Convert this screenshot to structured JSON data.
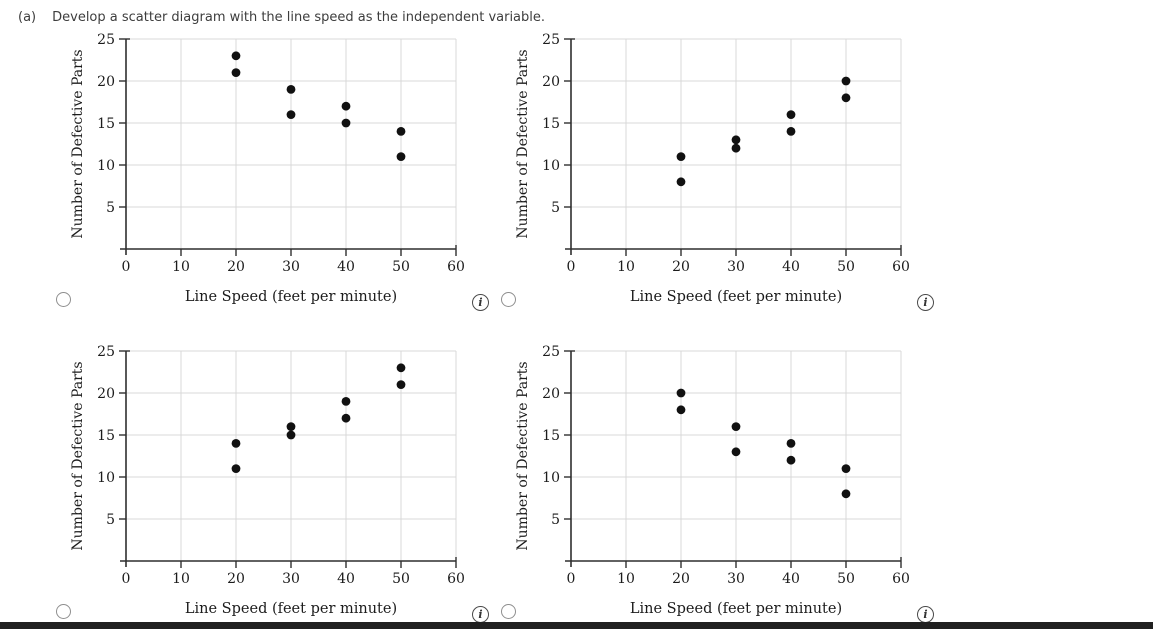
{
  "header": {
    "prefix": "(a)",
    "text": "Develop a scatter diagram with the line speed as the independent variable."
  },
  "colors": {
    "dot": "#111111",
    "grid": "#d8d8d8",
    "axis": "#2f2f2f",
    "text": "#1c1c1c",
    "bottom_bar": "#202020"
  },
  "icons": {
    "radio": "radio-circle",
    "info": "i"
  },
  "options": [
    {
      "id": 1,
      "selected": false
    },
    {
      "id": 2,
      "selected": false
    },
    {
      "id": 3,
      "selected": false
    },
    {
      "id": 4,
      "selected": false
    }
  ],
  "chart_data": [
    {
      "type": "scatter",
      "title": "",
      "xlabel": "Line Speed (feet per minute)",
      "ylabel": "Number of Defective Parts",
      "xlim": [
        0,
        60
      ],
      "ylim": [
        0,
        25
      ],
      "xticks": [
        0,
        10,
        20,
        30,
        40,
        50,
        60
      ],
      "yticks": [
        5,
        10,
        15,
        20,
        25
      ],
      "grid": true,
      "points": [
        [
          20,
          23
        ],
        [
          20,
          21
        ],
        [
          30,
          19
        ],
        [
          30,
          16
        ],
        [
          40,
          17
        ],
        [
          40,
          15
        ],
        [
          50,
          14
        ],
        [
          50,
          11
        ]
      ]
    },
    {
      "type": "scatter",
      "title": "",
      "xlabel": "Line Speed (feet per minute)",
      "ylabel": "Number of Defective Parts",
      "xlim": [
        0,
        60
      ],
      "ylim": [
        0,
        25
      ],
      "xticks": [
        0,
        10,
        20,
        30,
        40,
        50,
        60
      ],
      "yticks": [
        5,
        10,
        15,
        20,
        25
      ],
      "grid": true,
      "points": [
        [
          20,
          11
        ],
        [
          20,
          8
        ],
        [
          30,
          13
        ],
        [
          30,
          12
        ],
        [
          40,
          16
        ],
        [
          40,
          14
        ],
        [
          50,
          20
        ],
        [
          50,
          18
        ]
      ]
    },
    {
      "type": "scatter",
      "title": "",
      "xlabel": "Line Speed (feet per minute)",
      "ylabel": "Number of Defective Parts",
      "xlim": [
        0,
        60
      ],
      "ylim": [
        0,
        25
      ],
      "xticks": [
        0,
        10,
        20,
        30,
        40,
        50,
        60
      ],
      "yticks": [
        5,
        10,
        15,
        20,
        25
      ],
      "grid": true,
      "points": [
        [
          20,
          14
        ],
        [
          20,
          11
        ],
        [
          30,
          16
        ],
        [
          30,
          15
        ],
        [
          40,
          19
        ],
        [
          40,
          17
        ],
        [
          50,
          23
        ],
        [
          50,
          21
        ]
      ]
    },
    {
      "type": "scatter",
      "title": "",
      "xlabel": "Line Speed (feet per minute)",
      "ylabel": "Number of Defective Parts",
      "xlim": [
        0,
        60
      ],
      "ylim": [
        0,
        25
      ],
      "xticks": [
        0,
        10,
        20,
        30,
        40,
        50,
        60
      ],
      "yticks": [
        5,
        10,
        15,
        20,
        25
      ],
      "grid": true,
      "points": [
        [
          20,
          20
        ],
        [
          20,
          18
        ],
        [
          30,
          16
        ],
        [
          30,
          13
        ],
        [
          40,
          14
        ],
        [
          40,
          12
        ],
        [
          50,
          11
        ],
        [
          50,
          8
        ]
      ]
    }
  ]
}
